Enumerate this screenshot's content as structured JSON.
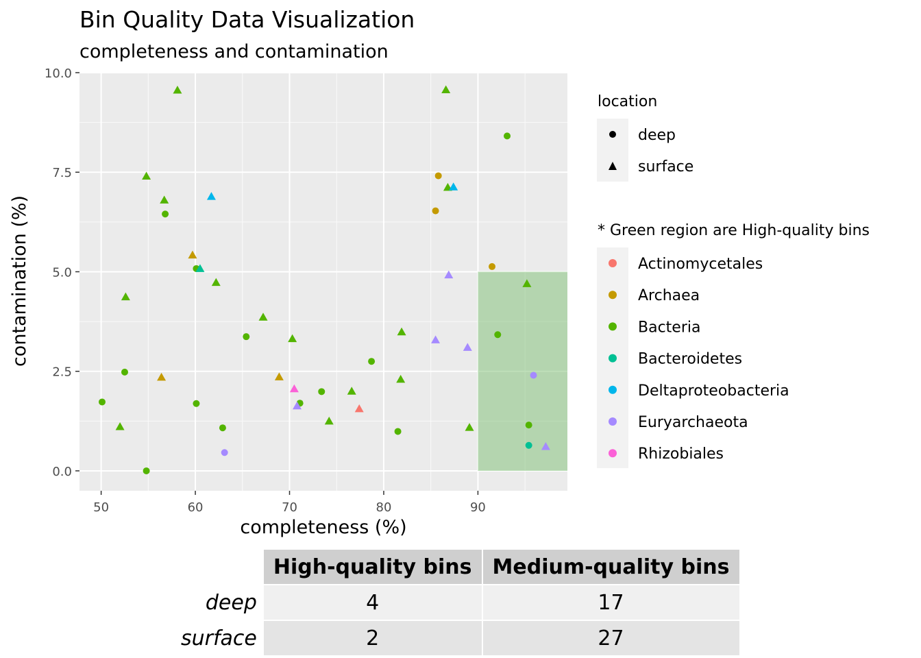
{
  "chart_data": {
    "type": "scatter",
    "title": "Bin Quality Data Visualization",
    "subtitle": "completeness and contamination",
    "xlabel": "completeness (%)",
    "ylabel": "contamination (%)",
    "xlim": [
      47.7,
      99.5
    ],
    "ylim": [
      -0.5,
      10.0
    ],
    "x_ticks": [
      50,
      60,
      70,
      80,
      90
    ],
    "y_ticks": [
      0.0,
      2.5,
      5.0,
      7.5,
      10.0
    ],
    "y_tick_labels": [
      "0.0",
      "2.5",
      "5.0",
      "7.5",
      "10.0"
    ],
    "grid": true,
    "legend_position": "right",
    "high_quality_region": {
      "x": [
        90,
        99.5
      ],
      "y": [
        0,
        5
      ],
      "color": "#7ebf73"
    },
    "shape_legend": {
      "title": "location",
      "items": [
        "deep",
        "surface"
      ]
    },
    "color_legend": {
      "title": "* Green region are High-quality bins",
      "items": [
        {
          "name": "Actinomycetales",
          "color": "#F8766D"
        },
        {
          "name": "Archaea",
          "color": "#C49A00"
        },
        {
          "name": "Bacteria",
          "color": "#53B400"
        },
        {
          "name": "Bacteroidetes",
          "color": "#00C094"
        },
        {
          "name": "Deltaproteobacteria",
          "color": "#00B6EB"
        },
        {
          "name": "Euryarchaeota",
          "color": "#A58AFF"
        },
        {
          "name": "Rhizobiales",
          "color": "#FB61D7"
        }
      ]
    },
    "points": [
      {
        "x": 50.1,
        "y": 1.73,
        "location": "deep",
        "taxon": "Bacteria"
      },
      {
        "x": 52.5,
        "y": 2.48,
        "location": "deep",
        "taxon": "Bacteria"
      },
      {
        "x": 54.8,
        "y": 0.0,
        "location": "deep",
        "taxon": "Bacteria"
      },
      {
        "x": 56.8,
        "y": 6.45,
        "location": "deep",
        "taxon": "Bacteria"
      },
      {
        "x": 60.1,
        "y": 1.69,
        "location": "deep",
        "taxon": "Bacteria"
      },
      {
        "x": 60.1,
        "y": 5.08,
        "location": "deep",
        "taxon": "Bacteria"
      },
      {
        "x": 62.9,
        "y": 1.08,
        "location": "deep",
        "taxon": "Bacteria"
      },
      {
        "x": 63.1,
        "y": 0.46,
        "location": "deep",
        "taxon": "Euryarchaeota"
      },
      {
        "x": 65.4,
        "y": 3.37,
        "location": "deep",
        "taxon": "Bacteria"
      },
      {
        "x": 71.1,
        "y": 1.7,
        "location": "deep",
        "taxon": "Bacteria"
      },
      {
        "x": 73.4,
        "y": 1.99,
        "location": "deep",
        "taxon": "Bacteria"
      },
      {
        "x": 78.7,
        "y": 2.75,
        "location": "deep",
        "taxon": "Bacteria"
      },
      {
        "x": 81.5,
        "y": 0.99,
        "location": "deep",
        "taxon": "Bacteria"
      },
      {
        "x": 85.5,
        "y": 6.53,
        "location": "deep",
        "taxon": "Archaea"
      },
      {
        "x": 85.8,
        "y": 7.41,
        "location": "deep",
        "taxon": "Archaea"
      },
      {
        "x": 91.5,
        "y": 5.13,
        "location": "deep",
        "taxon": "Archaea"
      },
      {
        "x": 92.1,
        "y": 3.42,
        "location": "deep",
        "taxon": "Bacteria"
      },
      {
        "x": 93.1,
        "y": 8.41,
        "location": "deep",
        "taxon": "Bacteria"
      },
      {
        "x": 95.4,
        "y": 1.15,
        "location": "deep",
        "taxon": "Bacteria"
      },
      {
        "x": 95.4,
        "y": 0.64,
        "location": "deep",
        "taxon": "Bacteroidetes"
      },
      {
        "x": 95.9,
        "y": 2.4,
        "location": "deep",
        "taxon": "Euryarchaeota"
      },
      {
        "x": 52.0,
        "y": 1.11,
        "location": "surface",
        "taxon": "Bacteria"
      },
      {
        "x": 52.6,
        "y": 4.37,
        "location": "surface",
        "taxon": "Bacteria"
      },
      {
        "x": 54.8,
        "y": 7.4,
        "location": "surface",
        "taxon": "Bacteria"
      },
      {
        "x": 56.4,
        "y": 2.35,
        "location": "surface",
        "taxon": "Archaea"
      },
      {
        "x": 56.7,
        "y": 6.8,
        "location": "surface",
        "taxon": "Bacteria"
      },
      {
        "x": 58.1,
        "y": 9.56,
        "location": "surface",
        "taxon": "Bacteria"
      },
      {
        "x": 59.7,
        "y": 5.42,
        "location": "surface",
        "taxon": "Archaea"
      },
      {
        "x": 60.5,
        "y": 5.08,
        "location": "surface",
        "taxon": "Bacteroidetes"
      },
      {
        "x": 61.7,
        "y": 6.89,
        "location": "surface",
        "taxon": "Deltaproteobacteria"
      },
      {
        "x": 62.2,
        "y": 4.73,
        "location": "surface",
        "taxon": "Bacteria"
      },
      {
        "x": 67.2,
        "y": 3.86,
        "location": "surface",
        "taxon": "Bacteria"
      },
      {
        "x": 68.9,
        "y": 2.36,
        "location": "surface",
        "taxon": "Archaea"
      },
      {
        "x": 70.3,
        "y": 3.32,
        "location": "surface",
        "taxon": "Bacteria"
      },
      {
        "x": 70.5,
        "y": 2.06,
        "location": "surface",
        "taxon": "Rhizobiales"
      },
      {
        "x": 70.8,
        "y": 1.63,
        "location": "surface",
        "taxon": "Euryarchaeota"
      },
      {
        "x": 74.2,
        "y": 1.25,
        "location": "surface",
        "taxon": "Bacteria"
      },
      {
        "x": 76.6,
        "y": 2.0,
        "location": "surface",
        "taxon": "Bacteria"
      },
      {
        "x": 77.4,
        "y": 1.56,
        "location": "surface",
        "taxon": "Actinomycetales"
      },
      {
        "x": 81.8,
        "y": 2.3,
        "location": "surface",
        "taxon": "Bacteria"
      },
      {
        "x": 81.9,
        "y": 3.49,
        "location": "surface",
        "taxon": "Bacteria"
      },
      {
        "x": 85.5,
        "y": 3.29,
        "location": "surface",
        "taxon": "Euryarchaeota"
      },
      {
        "x": 86.6,
        "y": 9.57,
        "location": "surface",
        "taxon": "Bacteria"
      },
      {
        "x": 86.8,
        "y": 7.12,
        "location": "surface",
        "taxon": "Bacteria"
      },
      {
        "x": 86.9,
        "y": 4.92,
        "location": "surface",
        "taxon": "Euryarchaeota"
      },
      {
        "x": 87.4,
        "y": 7.13,
        "location": "surface",
        "taxon": "Deltaproteobacteria"
      },
      {
        "x": 88.9,
        "y": 3.1,
        "location": "surface",
        "taxon": "Euryarchaeota"
      },
      {
        "x": 89.1,
        "y": 1.09,
        "location": "surface",
        "taxon": "Bacteria"
      },
      {
        "x": 95.2,
        "y": 4.7,
        "location": "surface",
        "taxon": "Bacteria"
      },
      {
        "x": 97.2,
        "y": 0.61,
        "location": "surface",
        "taxon": "Euryarchaeota"
      }
    ]
  },
  "table": {
    "columns": [
      "High-quality bins",
      "Medium-quality bins"
    ],
    "rows": [
      {
        "label": "deep",
        "values": [
          "4",
          "17"
        ]
      },
      {
        "label": "surface",
        "values": [
          "2",
          "27"
        ]
      }
    ]
  }
}
